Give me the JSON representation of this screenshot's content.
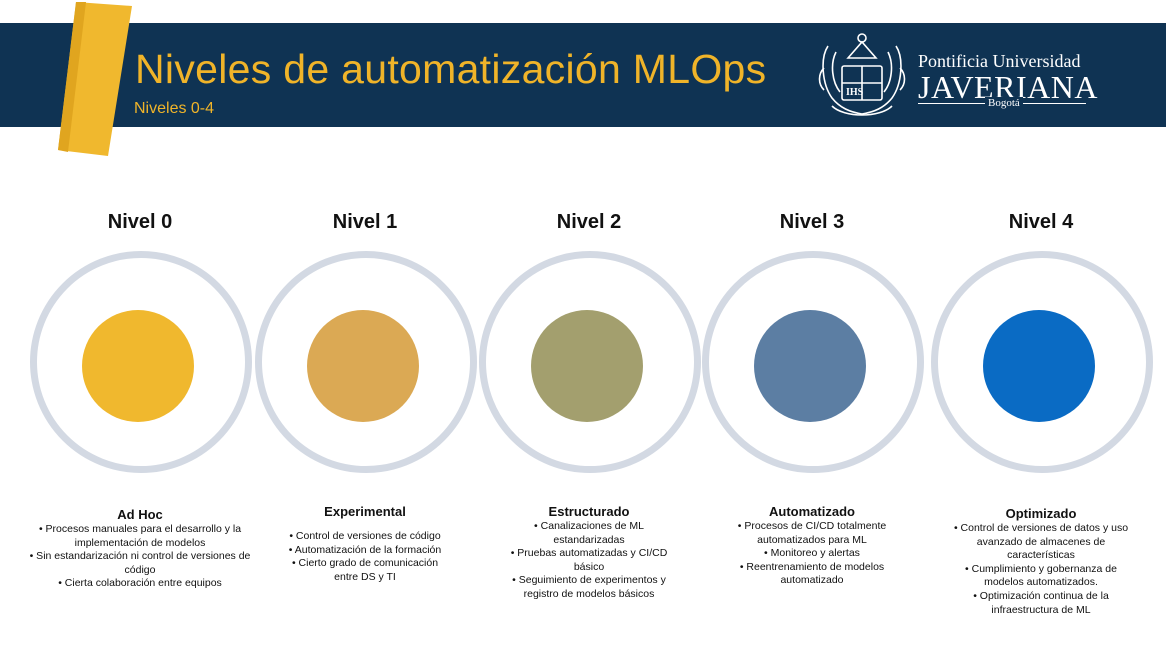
{
  "header": {
    "title": "Niveles de automatización MLOps",
    "subtitle": "Niveles 0-4",
    "logo": {
      "line1": "Pontificia Universidad",
      "line2": "JAVERIANA",
      "line3": "Bogotá",
      "emblem_icon": "university-crest-icon"
    }
  },
  "colors": {
    "header_bg": "#0f3353",
    "accent": "#f0b429",
    "ring": "#d3d9e3"
  },
  "levels": [
    {
      "title": "Nivel 0",
      "color": "#f0b82e",
      "name": "Ad Hoc",
      "items": [
        "• Procesos manuales para el desarrollo y la implementación de modelos",
        "• Sin estandarización ni control de versiones de código",
        "• Cierta colaboración entre equipos"
      ]
    },
    {
      "title": "Nivel 1",
      "color": "#dba954",
      "name": "Experimental",
      "items": [
        "• Control de versiones de código",
        "• Automatización de la formación",
        "• Cierto grado de comunicación entre DS y TI"
      ]
    },
    {
      "title": "Nivel 2",
      "color": "#a39f6e",
      "name": "Estructurado",
      "items": [
        "• Canalizaciones de ML estandarizadas",
        "• Pruebas automatizadas y CI/CD básico",
        "• Seguimiento de experimentos y registro de modelos básicos"
      ]
    },
    {
      "title": "Nivel 3",
      "color": "#5c7ea3",
      "name": "Automatizado",
      "items": [
        "• Procesos de CI/CD totalmente automatizados para ML",
        "• Monitoreo y alertas",
        "• Reentrenamiento de modelos automatizado"
      ]
    },
    {
      "title": "Nivel 4",
      "color": "#0a6bc4",
      "name": "Optimizado",
      "items": [
        "• Control de versiones de datos y uso avanzado de almacenes de características",
        "• Cumplimiento y gobernanza de modelos automatizados.",
        "• Optimización continua de la infraestructura de ML"
      ]
    }
  ]
}
